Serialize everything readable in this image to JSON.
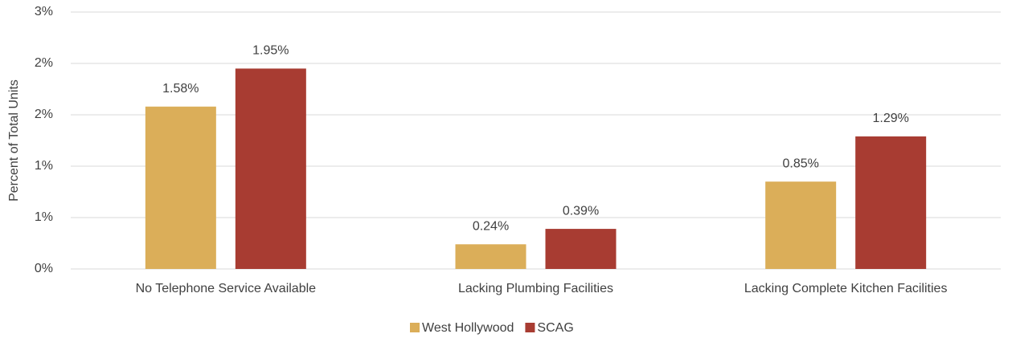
{
  "chart_data": {
    "type": "bar",
    "y_axis_label": "Percent of Total Units",
    "categories": [
      "No Telephone Service Available",
      "Lacking Plumbing Facilities",
      "Lacking Complete Kitchen Facilities"
    ],
    "series": [
      {
        "name": "West Hollywood",
        "color": "#dbae59",
        "values": [
          1.58,
          0.24,
          0.85
        ],
        "value_labels": [
          "1.58%",
          "0.24%",
          "0.85%"
        ]
      },
      {
        "name": "SCAG",
        "color": "#a83c32",
        "values": [
          1.95,
          0.39,
          1.29
        ],
        "value_labels": [
          "1.95%",
          "0.39%",
          "1.29%"
        ]
      }
    ],
    "ylim": [
      0,
      2.5
    ],
    "yticks": [
      {
        "value": 0,
        "label": "0%"
      },
      {
        "value": 0.5,
        "label": "1%"
      },
      {
        "value": 1,
        "label": "1%"
      },
      {
        "value": 1.5,
        "label": "2%"
      },
      {
        "value": 2,
        "label": "2%"
      },
      {
        "value": 2.5,
        "label": "3%"
      }
    ],
    "grid": true,
    "legend": "bottom"
  }
}
